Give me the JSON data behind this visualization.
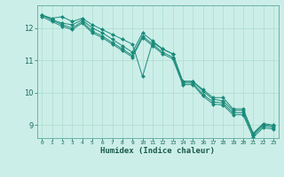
{
  "xlabel": "Humidex (Indice chaleur)",
  "ylabel": "",
  "bg_color": "#cceee8",
  "grid_color": "#aaddcc",
  "line_color": "#1a8a7a",
  "marker_color": "#1a8a7a",
  "xlim": [
    -0.5,
    23.5
  ],
  "ylim": [
    8.6,
    12.7
  ],
  "yticks": [
    9,
    10,
    11,
    12
  ],
  "xticks": [
    0,
    1,
    2,
    3,
    4,
    5,
    6,
    7,
    8,
    9,
    10,
    11,
    12,
    13,
    14,
    15,
    16,
    17,
    18,
    19,
    20,
    21,
    22,
    23
  ],
  "series": [
    [
      12.4,
      12.3,
      12.35,
      12.2,
      12.3,
      12.1,
      11.95,
      11.8,
      11.65,
      11.5,
      10.5,
      11.55,
      11.35,
      11.2,
      10.35,
      10.35,
      10.1,
      9.85,
      9.85,
      9.5,
      9.5,
      8.75,
      9.05,
      9.0
    ],
    [
      12.4,
      12.25,
      12.15,
      12.1,
      12.25,
      12.0,
      11.85,
      11.65,
      11.45,
      11.25,
      11.85,
      11.6,
      11.35,
      11.2,
      10.35,
      10.35,
      10.05,
      9.8,
      9.75,
      9.45,
      9.45,
      8.72,
      9.02,
      8.97
    ],
    [
      12.4,
      12.25,
      12.1,
      12.0,
      12.2,
      11.9,
      11.75,
      11.55,
      11.35,
      11.15,
      11.75,
      11.5,
      11.25,
      11.1,
      10.3,
      10.3,
      9.95,
      9.72,
      9.68,
      9.38,
      9.38,
      8.68,
      8.98,
      8.93
    ],
    [
      12.35,
      12.2,
      12.05,
      11.95,
      12.15,
      11.85,
      11.7,
      11.5,
      11.3,
      11.1,
      11.7,
      11.45,
      11.2,
      11.05,
      10.25,
      10.25,
      9.9,
      9.65,
      9.62,
      9.32,
      9.32,
      8.62,
      8.92,
      8.88
    ]
  ]
}
